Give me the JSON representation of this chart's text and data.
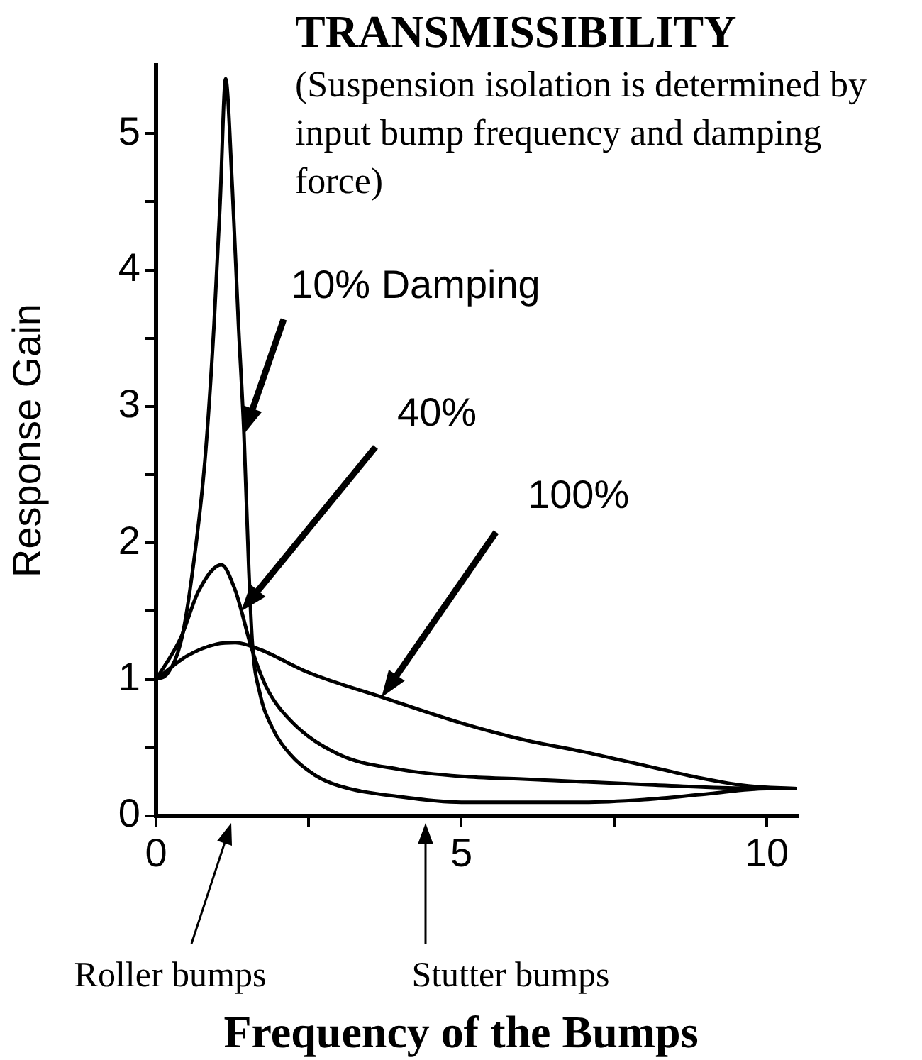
{
  "chart_data": {
    "type": "line",
    "title": "TRANSMISSIBILITY",
    "subtitle": "(Suspension isolation is determined by input bump frequency and damping force)",
    "xlabel": "Frequency of the Bumps",
    "ylabel": "Response Gain",
    "xlim": [
      0,
      10.5
    ],
    "xticks": [
      0,
      {
        "value": 2.5,
        "label": null
      },
      5,
      {
        "value": 7.5,
        "label": null
      },
      10
    ],
    "ylim": [
      0,
      5.5
    ],
    "yticks": [
      0,
      {
        "value": 0.5,
        "label": null
      },
      1,
      {
        "value": 1.5,
        "label": null
      },
      2,
      {
        "value": 2.5,
        "label": null
      },
      3,
      {
        "value": 3.5,
        "label": null
      },
      4,
      {
        "value": 4.5,
        "label": null
      },
      5
    ],
    "grid": false,
    "legend": false,
    "marker": "none",
    "line_style": "solid",
    "series": [
      {
        "name": "10% Damping",
        "color": "#000000",
        "x": [
          0,
          0.2,
          0.42,
          0.6,
          0.8,
          0.95,
          1.05,
          1.14,
          1.25,
          1.35,
          1.44,
          1.52,
          1.58,
          1.7,
          1.9,
          2.2,
          2.6,
          3,
          4,
          5,
          6,
          7,
          8,
          9,
          10,
          10.5
        ],
        "values": [
          1,
          1.05,
          1.3,
          1.8,
          2.6,
          3.6,
          4.5,
          5.4,
          4.6,
          3.6,
          2.8,
          1.8,
          1.25,
          0.9,
          0.65,
          0.45,
          0.3,
          0.22,
          0.14,
          0.1,
          0.1,
          0.1,
          0.12,
          0.16,
          0.2,
          0.2
        ]
      },
      {
        "name": "40%",
        "color": "#000000",
        "x": [
          0,
          0.4,
          0.7,
          1.07,
          1.3,
          1.4,
          1.55,
          1.8,
          2.2,
          3,
          4,
          5,
          6,
          7,
          8,
          9,
          10,
          10.5
        ],
        "values": [
          1,
          1.3,
          1.65,
          1.84,
          1.65,
          1.5,
          1.25,
          0.95,
          0.7,
          0.45,
          0.34,
          0.29,
          0.27,
          0.25,
          0.23,
          0.21,
          0.2,
          0.2
        ]
      },
      {
        "name": "100%",
        "color": "#000000",
        "x": [
          0,
          0.5,
          1,
          1.3,
          1.7,
          2.5,
          3.7,
          5,
          6,
          7,
          8,
          9,
          9.7,
          10.5
        ],
        "values": [
          1,
          1.17,
          1.26,
          1.27,
          1.22,
          1.05,
          0.87,
          0.68,
          0.56,
          0.47,
          0.37,
          0.27,
          0.22,
          0.2
        ]
      }
    ],
    "annotations": [
      "Roller bumps",
      "Stutter bumps"
    ]
  }
}
